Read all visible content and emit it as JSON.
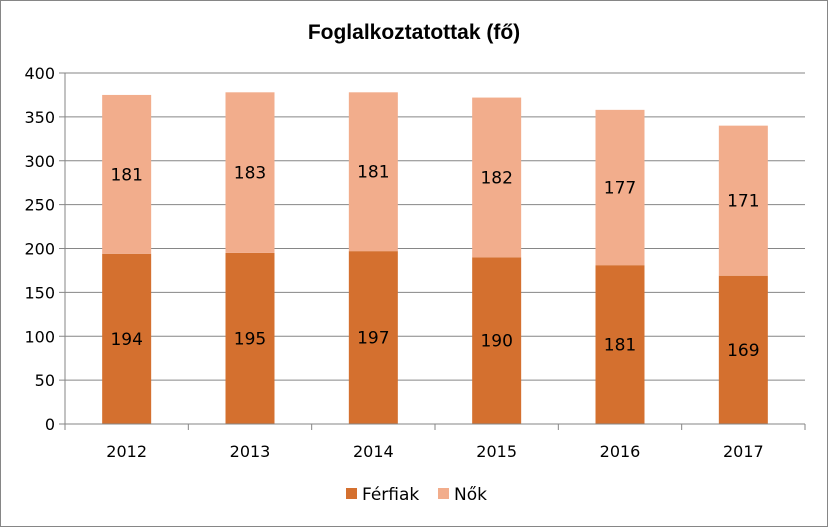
{
  "chart_data": {
    "type": "bar",
    "stacked": true,
    "title": "Foglalkoztatottak (fő)",
    "xlabel": "",
    "ylabel": "",
    "categories": [
      "2012",
      "2013",
      "2014",
      "2015",
      "2016",
      "2017"
    ],
    "series": [
      {
        "name": "Férfiak",
        "values": [
          194,
          195,
          197,
          190,
          181,
          169
        ],
        "color": "#D4702F"
      },
      {
        "name": "Nők",
        "values": [
          181,
          183,
          181,
          182,
          177,
          171
        ],
        "color": "#F2AD8C"
      }
    ],
    "ylim": [
      0,
      400
    ],
    "yticks": [
      0,
      50,
      100,
      150,
      200,
      250,
      300,
      350,
      400
    ],
    "grid": true,
    "legend_position": "bottom"
  }
}
